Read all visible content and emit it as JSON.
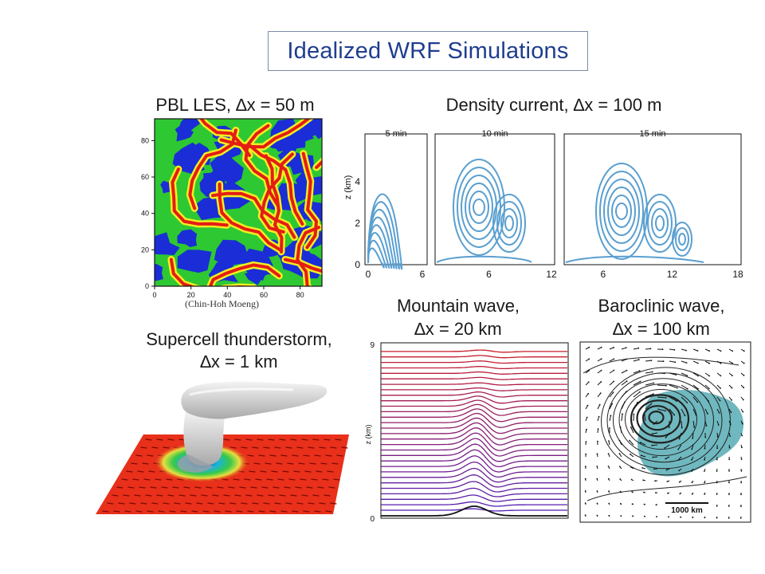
{
  "title": "Idealized WRF Simulations",
  "panels": {
    "pbl": {
      "title": "PBL LES, ∆x = 50 m",
      "credit": "(Chin-Hoh Moeng)",
      "x_ticks": [
        "0",
        "20",
        "40",
        "60",
        "80"
      ],
      "y_ticks": [
        "0",
        "20",
        "40",
        "60",
        "80"
      ],
      "colors": {
        "blue": "#1a2dd6",
        "green": "#2ec832",
        "yellow": "#f2ee22",
        "red": "#e41d14"
      }
    },
    "density": {
      "title": "Density current, ∆x = 100 m",
      "ylabel": "z (km)",
      "y_ticks": [
        "0",
        "2",
        "4"
      ],
      "frames": [
        {
          "label": "5 min",
          "x_ticks": [
            "0",
            "6"
          ]
        },
        {
          "label": "10 min",
          "x_ticks": [
            "6",
            "12"
          ]
        },
        {
          "label": "15 min",
          "x_ticks": [
            "6",
            "12",
            "18"
          ]
        }
      ],
      "contour_color": "#5a9fd0"
    },
    "supercell": {
      "title_line1": "Supercell thunderstorm,",
      "title_line2": "∆x = 1 km",
      "ground_color": "#e8301a"
    },
    "mountain": {
      "title_line1": "Mountain wave,",
      "title_line2": "∆x = 20 km",
      "ylabel": "z (km)",
      "y_ticks": [
        "0",
        "9"
      ]
    },
    "baroclinic": {
      "title_line1": "Baroclinic wave,",
      "title_line2": "∆x = 100 km",
      "scale_label": "1000 km",
      "shade_color": "#5fb0b8"
    }
  }
}
